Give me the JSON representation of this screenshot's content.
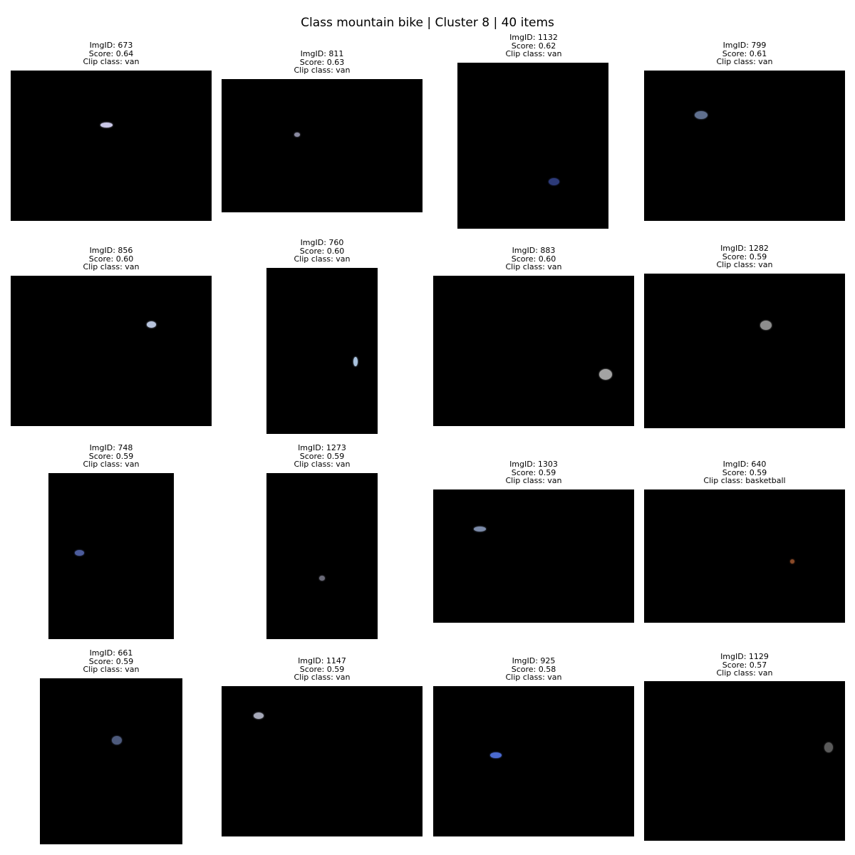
{
  "title": "Class mountain bike | Cluster 8 | 40 items",
  "items": [
    {
      "id_text": "ImgID: 673",
      "score_text": "Score: 0.64",
      "clip_text": "Clip class: van",
      "object_color": "#c9c7e6"
    },
    {
      "id_text": "ImgID: 811",
      "score_text": "Score: 0.63",
      "clip_text": "Clip class: van",
      "object_color": "#8a8aa0"
    },
    {
      "id_text": "ImgID: 1132",
      "score_text": "Score: 0.62",
      "clip_text": "Clip class: van",
      "object_color": "#2c3a78"
    },
    {
      "id_text": "ImgID: 799",
      "score_text": "Score: 0.61",
      "clip_text": "Clip class: van",
      "object_color": "#5f6f8e"
    },
    {
      "id_text": "ImgID: 856",
      "score_text": "Score: 0.60",
      "clip_text": "Clip class: van",
      "object_color": "#b7c3dc"
    },
    {
      "id_text": "ImgID: 760",
      "score_text": "Score: 0.60",
      "clip_text": "Clip class: van",
      "object_color": "#a9c2de"
    },
    {
      "id_text": "ImgID: 883",
      "score_text": "Score: 0.60",
      "clip_text": "Clip class: van",
      "object_color": "#a3a3a3"
    },
    {
      "id_text": "ImgID: 1282",
      "score_text": "Score: 0.59",
      "clip_text": "Clip class: van",
      "object_color": "#8d8d8d"
    },
    {
      "id_text": "ImgID: 748",
      "score_text": "Score: 0.59",
      "clip_text": "Clip class: van",
      "object_color": "#4c5c9c"
    },
    {
      "id_text": "ImgID: 1273",
      "score_text": "Score: 0.59",
      "clip_text": "Clip class: van",
      "object_color": "#6a6a78"
    },
    {
      "id_text": "ImgID: 1303",
      "score_text": "Score: 0.59",
      "clip_text": "Clip class: van",
      "object_color": "#7b8aa8"
    },
    {
      "id_text": "ImgID: 640",
      "score_text": "Score: 0.59",
      "clip_text": "Clip class: basketball",
      "object_color": "#8a4a28"
    },
    {
      "id_text": "ImgID: 661",
      "score_text": "Score: 0.59",
      "clip_text": "Clip class: van",
      "object_color": "#4d5a7c"
    },
    {
      "id_text": "ImgID: 1147",
      "score_text": "Score: 0.59",
      "clip_text": "Clip class: van",
      "object_color": "#a5a8b8"
    },
    {
      "id_text": "ImgID: 925",
      "score_text": "Score: 0.58",
      "clip_text": "Clip class: van",
      "object_color": "#4a6ad0"
    },
    {
      "id_text": "ImgID: 1129",
      "score_text": "Score: 0.57",
      "clip_text": "Clip class: van",
      "object_color": "#5a5a5a"
    }
  ]
}
